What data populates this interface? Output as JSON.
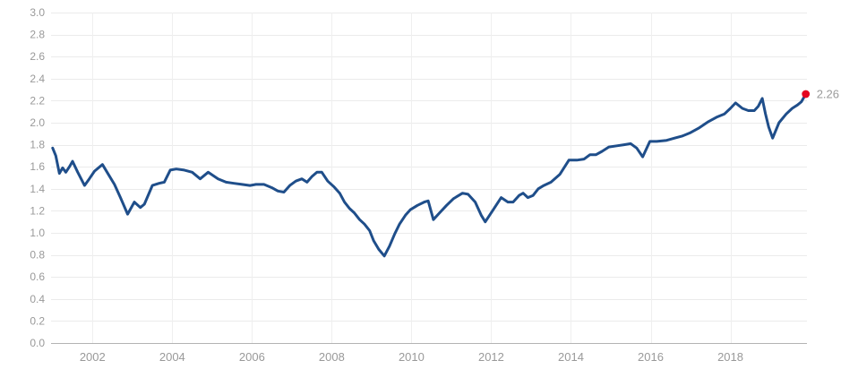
{
  "chart_data": {
    "type": "line",
    "title": "",
    "x_axis": {
      "range": [
        2000.96,
        2019.92
      ],
      "tick_values": [
        2002,
        2004,
        2006,
        2008,
        2010,
        2012,
        2014,
        2016,
        2018
      ],
      "tick_labels": [
        "2002",
        "2004",
        "2006",
        "2008",
        "2010",
        "2012",
        "2014",
        "2016",
        "2018"
      ],
      "gridlines": true
    },
    "y_axis": {
      "range": [
        0.0,
        3.0
      ],
      "tick_values": [
        0.0,
        0.2,
        0.4,
        0.6,
        0.8,
        1.0,
        1.2,
        1.4,
        1.6,
        1.8,
        2.0,
        2.2,
        2.4,
        2.6,
        2.8,
        3.0
      ],
      "tick_labels": [
        "0.0",
        "0.2",
        "0.4",
        "0.6",
        "0.8",
        "1.0",
        "1.2",
        "1.4",
        "1.6",
        "1.8",
        "2.0",
        "2.2",
        "2.4",
        "2.6",
        "2.8",
        "3.0"
      ],
      "gridlines": true
    },
    "legend": null,
    "series": [
      {
        "name": "value",
        "color": "#1f4e8a",
        "points": [
          [
            2001.0,
            1.77
          ],
          [
            2001.08,
            1.7
          ],
          [
            2001.17,
            1.54
          ],
          [
            2001.25,
            1.59
          ],
          [
            2001.33,
            1.55
          ],
          [
            2001.42,
            1.6
          ],
          [
            2001.5,
            1.65
          ],
          [
            2001.63,
            1.55
          ],
          [
            2001.8,
            1.43
          ],
          [
            2001.92,
            1.49
          ],
          [
            2002.05,
            1.56
          ],
          [
            2002.25,
            1.62
          ],
          [
            2002.4,
            1.53
          ],
          [
            2002.55,
            1.44
          ],
          [
            2002.7,
            1.32
          ],
          [
            2002.88,
            1.17
          ],
          [
            2003.05,
            1.28
          ],
          [
            2003.2,
            1.23
          ],
          [
            2003.3,
            1.26
          ],
          [
            2003.5,
            1.43
          ],
          [
            2003.67,
            1.45
          ],
          [
            2003.8,
            1.46
          ],
          [
            2003.95,
            1.57
          ],
          [
            2004.1,
            1.58
          ],
          [
            2004.3,
            1.57
          ],
          [
            2004.5,
            1.55
          ],
          [
            2004.7,
            1.49
          ],
          [
            2004.9,
            1.55
          ],
          [
            2005.15,
            1.49
          ],
          [
            2005.35,
            1.46
          ],
          [
            2005.55,
            1.45
          ],
          [
            2005.75,
            1.44
          ],
          [
            2005.95,
            1.43
          ],
          [
            2006.1,
            1.44
          ],
          [
            2006.3,
            1.44
          ],
          [
            2006.5,
            1.41
          ],
          [
            2006.65,
            1.38
          ],
          [
            2006.8,
            1.37
          ],
          [
            2006.95,
            1.43
          ],
          [
            2007.1,
            1.47
          ],
          [
            2007.25,
            1.49
          ],
          [
            2007.38,
            1.46
          ],
          [
            2007.5,
            1.51
          ],
          [
            2007.63,
            1.55
          ],
          [
            2007.75,
            1.55
          ],
          [
            2007.9,
            1.47
          ],
          [
            2008.05,
            1.42
          ],
          [
            2008.2,
            1.36
          ],
          [
            2008.32,
            1.28
          ],
          [
            2008.45,
            1.22
          ],
          [
            2008.57,
            1.18
          ],
          [
            2008.7,
            1.12
          ],
          [
            2008.82,
            1.08
          ],
          [
            2008.95,
            1.02
          ],
          [
            2009.05,
            0.93
          ],
          [
            2009.18,
            0.85
          ],
          [
            2009.32,
            0.79
          ],
          [
            2009.45,
            0.88
          ],
          [
            2009.58,
            0.99
          ],
          [
            2009.7,
            1.08
          ],
          [
            2009.85,
            1.16
          ],
          [
            2009.97,
            1.21
          ],
          [
            2010.15,
            1.25
          ],
          [
            2010.32,
            1.28
          ],
          [
            2010.42,
            1.29
          ],
          [
            2010.55,
            1.12
          ],
          [
            2010.7,
            1.18
          ],
          [
            2010.88,
            1.25
          ],
          [
            2011.05,
            1.31
          ],
          [
            2011.28,
            1.36
          ],
          [
            2011.42,
            1.35
          ],
          [
            2011.6,
            1.28
          ],
          [
            2011.75,
            1.16
          ],
          [
            2011.85,
            1.1
          ],
          [
            2012.05,
            1.21
          ],
          [
            2012.25,
            1.32
          ],
          [
            2012.42,
            1.28
          ],
          [
            2012.55,
            1.28
          ],
          [
            2012.7,
            1.34
          ],
          [
            2012.8,
            1.36
          ],
          [
            2012.92,
            1.32
          ],
          [
            2013.05,
            1.34
          ],
          [
            2013.18,
            1.4
          ],
          [
            2013.32,
            1.43
          ],
          [
            2013.5,
            1.46
          ],
          [
            2013.72,
            1.53
          ],
          [
            2013.95,
            1.66
          ],
          [
            2014.15,
            1.66
          ],
          [
            2014.33,
            1.67
          ],
          [
            2014.48,
            1.71
          ],
          [
            2014.63,
            1.71
          ],
          [
            2014.78,
            1.74
          ],
          [
            2014.95,
            1.78
          ],
          [
            2015.15,
            1.79
          ],
          [
            2015.33,
            1.8
          ],
          [
            2015.5,
            1.81
          ],
          [
            2015.65,
            1.77
          ],
          [
            2015.8,
            1.69
          ],
          [
            2015.98,
            1.83
          ],
          [
            2016.15,
            1.83
          ],
          [
            2016.4,
            1.84
          ],
          [
            2016.6,
            1.86
          ],
          [
            2016.8,
            1.88
          ],
          [
            2017.0,
            1.91
          ],
          [
            2017.2,
            1.95
          ],
          [
            2017.45,
            2.01
          ],
          [
            2017.65,
            2.05
          ],
          [
            2017.85,
            2.08
          ],
          [
            2018.0,
            2.13
          ],
          [
            2018.13,
            2.18
          ],
          [
            2018.3,
            2.13
          ],
          [
            2018.45,
            2.11
          ],
          [
            2018.6,
            2.11
          ],
          [
            2018.7,
            2.15
          ],
          [
            2018.8,
            2.22
          ],
          [
            2018.88,
            2.08
          ],
          [
            2018.96,
            1.96
          ],
          [
            2019.06,
            1.86
          ],
          [
            2019.22,
            2.0
          ],
          [
            2019.4,
            2.08
          ],
          [
            2019.55,
            2.13
          ],
          [
            2019.68,
            2.16
          ],
          [
            2019.78,
            2.19
          ],
          [
            2019.89,
            2.26
          ]
        ]
      }
    ],
    "end_marker": {
      "value": 2.26,
      "label": "2.26",
      "dot_color": "#e40520",
      "label_color": "#9a9a9a"
    },
    "colors": {
      "background": "#ffffff",
      "h_gridline": "#ebebeb",
      "v_gridline": "#efefef",
      "axis_line": "#b3b3b3",
      "tick_text": "#999999"
    }
  }
}
